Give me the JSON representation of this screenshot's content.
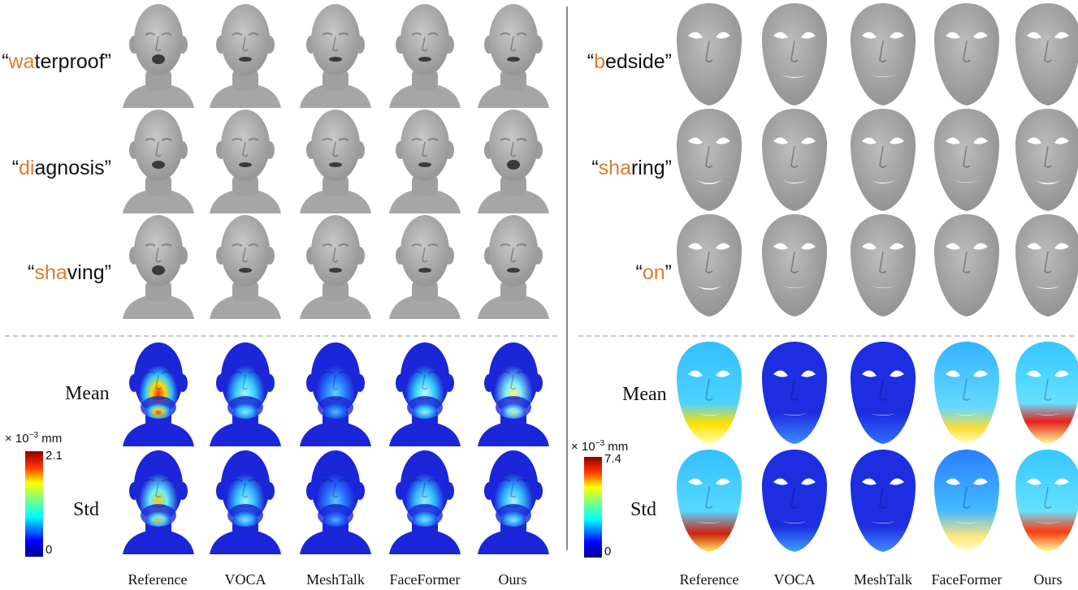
{
  "left": {
    "words": [
      {
        "open": "“",
        "hl": "wa",
        "rest": "terproof",
        "close": "”"
      },
      {
        "open": "“",
        "hl": "di",
        "rest": "agnosis",
        "close": "”"
      },
      {
        "open": "“",
        "hl": "sha",
        "rest": "ving",
        "close": "”"
      }
    ],
    "colorbar": {
      "unit_prefix": "× 10",
      "unit_exp": "−3",
      "unit_suffix": " mm",
      "max": "2.1",
      "min": "0"
    }
  },
  "right": {
    "words": [
      {
        "open": "“",
        "hl": "b",
        "rest": "edside",
        "close": "”"
      },
      {
        "open": "“",
        "hl": "sha",
        "rest": "ring",
        "close": "”"
      },
      {
        "open": "“",
        "hl": "on",
        "rest": "",
        "close": "”"
      }
    ],
    "colorbar": {
      "unit_prefix": "× 10",
      "unit_exp": "−3",
      "unit_suffix": " mm",
      "max": "7.4",
      "min": "0"
    }
  },
  "stat_labels": [
    "Mean",
    "Std"
  ],
  "methods": [
    "Reference",
    "VOCA",
    "MeshTalk",
    "FaceFormer",
    "Ours"
  ],
  "colors": {
    "highlight": "#e07a2e",
    "mesh_gray": "#a9a9a9",
    "jet_low": "#1a1ae6",
    "jet_high": "#d01010"
  }
}
